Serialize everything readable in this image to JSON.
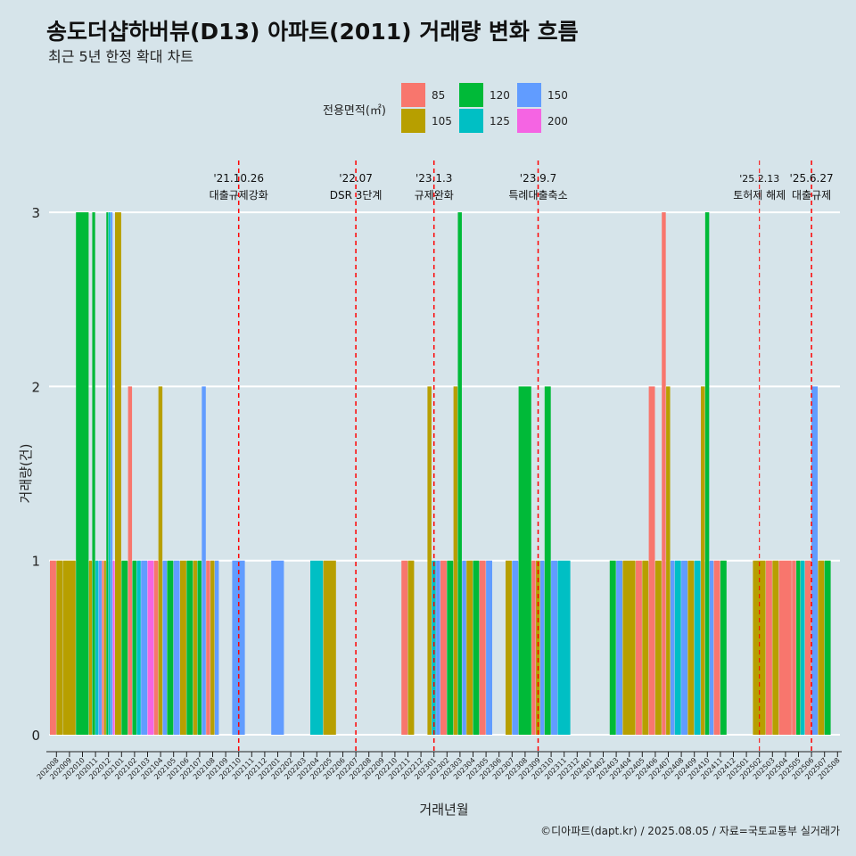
{
  "chart_data": {
    "type": "bar",
    "title": "송도더샵하버뷰(D13) 아파트(2011) 거래량 변화 흐름",
    "subtitle": "최근 5년 한정 확대 차트",
    "xlabel": "거래년월",
    "ylabel": "거래량(건)",
    "ylim": [
      0,
      3
    ],
    "yticks": [
      0,
      1,
      2,
      3
    ],
    "grid": true,
    "legend": {
      "title": "전용면적(㎡)",
      "position": "top",
      "items": [
        {
          "name": "85",
          "color": "#f8766d"
        },
        {
          "name": "105",
          "color": "#b79f00"
        },
        {
          "name": "120",
          "color": "#00ba38"
        },
        {
          "name": "125",
          "color": "#00bfc4"
        },
        {
          "name": "150",
          "color": "#619cff"
        },
        {
          "name": "200",
          "color": "#f564e3"
        }
      ]
    },
    "categories": [
      "202008",
      "202009",
      "202010",
      "202011",
      "202012",
      "202101",
      "202102",
      "202103",
      "202104",
      "202105",
      "202106",
      "202107",
      "202108",
      "202109",
      "202110",
      "202111",
      "202112",
      "202201",
      "202202",
      "202203",
      "202204",
      "202205",
      "202206",
      "202207",
      "202208",
      "202209",
      "202210",
      "202211",
      "202212",
      "202301",
      "202302",
      "202303",
      "202304",
      "202305",
      "202306",
      "202307",
      "202308",
      "202309",
      "202310",
      "202311",
      "202312",
      "202401",
      "202402",
      "202403",
      "202404",
      "202405",
      "202406",
      "202407",
      "202408",
      "202409",
      "202410",
      "202411",
      "202412",
      "202501",
      "202502",
      "202503",
      "202504",
      "202505",
      "202506",
      "202507",
      "202508"
    ],
    "bars": [
      {
        "month": "202008",
        "groups": [
          {
            "area": "85",
            "value": 1
          },
          {
            "area": "105",
            "value": 1
          }
        ]
      },
      {
        "month": "202009",
        "groups": [
          {
            "area": "105",
            "value": 1
          }
        ]
      },
      {
        "month": "202010",
        "groups": [
          {
            "area": "120",
            "value": 3
          }
        ]
      },
      {
        "month": "202011",
        "groups": [
          {
            "area": "105",
            "value": 1
          },
          {
            "area": "120",
            "value": 3
          },
          {
            "area": "125",
            "value": 1
          },
          {
            "area": "150",
            "value": 1
          }
        ]
      },
      {
        "month": "202012",
        "groups": [
          {
            "area": "85",
            "value": 1
          },
          {
            "area": "105",
            "value": 1
          },
          {
            "area": "120",
            "value": 3
          },
          {
            "area": "125",
            "value": 3
          },
          {
            "area": "150",
            "value": 3
          },
          {
            "area": "200",
            "value": 1
          }
        ]
      },
      {
        "month": "202101",
        "groups": [
          {
            "area": "105",
            "value": 3
          },
          {
            "area": "120",
            "value": 1
          }
        ]
      },
      {
        "month": "202102",
        "groups": [
          {
            "area": "85",
            "value": 2
          },
          {
            "area": "120",
            "value": 1
          },
          {
            "area": "125",
            "value": 1
          }
        ]
      },
      {
        "month": "202103",
        "groups": [
          {
            "area": "150",
            "value": 1
          },
          {
            "area": "200",
            "value": 1
          }
        ]
      },
      {
        "month": "202104",
        "groups": [
          {
            "area": "85",
            "value": 1
          },
          {
            "area": "105",
            "value": 2
          },
          {
            "area": "150",
            "value": 1
          }
        ]
      },
      {
        "month": "202105",
        "groups": [
          {
            "area": "120",
            "value": 1
          },
          {
            "area": "150",
            "value": 1
          }
        ]
      },
      {
        "month": "202106",
        "groups": [
          {
            "area": "105",
            "value": 1
          },
          {
            "area": "120",
            "value": 1
          }
        ]
      },
      {
        "month": "202107",
        "groups": [
          {
            "area": "105",
            "value": 1
          },
          {
            "area": "120",
            "value": 1
          },
          {
            "area": "150",
            "value": 2
          }
        ]
      },
      {
        "month": "202108",
        "groups": [
          {
            "area": "85",
            "value": 1
          },
          {
            "area": "105",
            "value": 1
          },
          {
            "area": "150",
            "value": 1
          }
        ]
      },
      {
        "month": "202110",
        "groups": [
          {
            "area": "150",
            "value": 1
          }
        ]
      },
      {
        "month": "202201",
        "groups": [
          {
            "area": "150",
            "value": 1
          }
        ]
      },
      {
        "month": "202204",
        "groups": [
          {
            "area": "125",
            "value": 1
          }
        ]
      },
      {
        "month": "202205",
        "groups": [
          {
            "area": "105",
            "value": 1
          }
        ]
      },
      {
        "month": "202211",
        "groups": [
          {
            "area": "85",
            "value": 1
          },
          {
            "area": "105",
            "value": 1
          }
        ]
      },
      {
        "month": "202301",
        "groups": [
          {
            "area": "105",
            "value": 2
          },
          {
            "area": "150",
            "value": 1
          },
          {
            "area": "125",
            "value": 1
          }
        ]
      },
      {
        "month": "202302",
        "groups": [
          {
            "area": "85",
            "value": 1
          },
          {
            "area": "120",
            "value": 1
          }
        ]
      },
      {
        "month": "202303",
        "groups": [
          {
            "area": "105",
            "value": 2
          },
          {
            "area": "120",
            "value": 3
          },
          {
            "area": "150",
            "value": 1
          }
        ]
      },
      {
        "month": "202304",
        "groups": [
          {
            "area": "105",
            "value": 1
          },
          {
            "area": "120",
            "value": 1
          }
        ]
      },
      {
        "month": "202305",
        "groups": [
          {
            "area": "85",
            "value": 1
          },
          {
            "area": "150",
            "value": 1
          }
        ]
      },
      {
        "month": "202307",
        "groups": [
          {
            "area": "105",
            "value": 1
          },
          {
            "area": "150",
            "value": 1
          }
        ]
      },
      {
        "month": "202308",
        "groups": [
          {
            "area": "120",
            "value": 2
          }
        ]
      },
      {
        "month": "202309",
        "groups": [
          {
            "area": "85",
            "value": 1
          },
          {
            "area": "105",
            "value": 1
          },
          {
            "area": "150",
            "value": 1
          }
        ]
      },
      {
        "month": "202310",
        "groups": [
          {
            "area": "150",
            "value": 1
          },
          {
            "area": "120",
            "value": 2
          }
        ]
      },
      {
        "month": "202311",
        "groups": [
          {
            "area": "125",
            "value": 1
          }
        ]
      },
      {
        "month": "202403",
        "groups": [
          {
            "area": "120",
            "value": 1
          },
          {
            "area": "150",
            "value": 1
          }
        ]
      },
      {
        "month": "202404",
        "groups": [
          {
            "area": "105",
            "value": 1
          }
        ]
      },
      {
        "month": "202405",
        "groups": [
          {
            "area": "85",
            "value": 1
          },
          {
            "area": "105",
            "value": 1
          }
        ]
      },
      {
        "month": "202406",
        "groups": [
          {
            "area": "85",
            "value": 2
          },
          {
            "area": "105",
            "value": 1
          }
        ]
      },
      {
        "month": "202407",
        "groups": [
          {
            "area": "85",
            "value": 3
          },
          {
            "area": "105",
            "value": 2
          },
          {
            "area": "150",
            "value": 1
          }
        ]
      },
      {
        "month": "202408",
        "groups": [
          {
            "area": "125",
            "value": 1
          },
          {
            "area": "150",
            "value": 1
          }
        ]
      },
      {
        "month": "202409",
        "groups": [
          {
            "area": "105",
            "value": 1
          },
          {
            "area": "125",
            "value": 1
          }
        ]
      },
      {
        "month": "202410",
        "groups": [
          {
            "area": "105",
            "value": 2
          },
          {
            "area": "120",
            "value": 3
          },
          {
            "area": "150",
            "value": 1
          }
        ]
      },
      {
        "month": "202411",
        "groups": [
          {
            "area": "85",
            "value": 1
          },
          {
            "area": "120",
            "value": 1
          }
        ]
      },
      {
        "month": "202502",
        "groups": [
          {
            "area": "105",
            "value": 1
          }
        ]
      },
      {
        "month": "202503",
        "groups": [
          {
            "area": "85",
            "value": 1
          },
          {
            "area": "105",
            "value": 1
          }
        ]
      },
      {
        "month": "202504",
        "groups": [
          {
            "area": "85",
            "value": 1
          }
        ]
      },
      {
        "month": "202505",
        "groups": [
          {
            "area": "85",
            "value": 1
          },
          {
            "area": "125",
            "value": 1
          },
          {
            "area": "120",
            "value": 1
          }
        ]
      },
      {
        "month": "202506",
        "groups": [
          {
            "area": "85",
            "value": 1
          },
          {
            "area": "150",
            "value": 2
          }
        ]
      },
      {
        "month": "202507",
        "groups": [
          {
            "area": "105",
            "value": 1
          },
          {
            "area": "120",
            "value": 1
          }
        ]
      }
    ],
    "annotations": [
      {
        "month": "202110",
        "date": "'21.10.26",
        "label": "대출규제강화"
      },
      {
        "month": "202207",
        "date": "'22.07",
        "label": "DSR 3단계"
      },
      {
        "month": "202301",
        "date": "'23.1.3",
        "label": "규제완화"
      },
      {
        "month": "202309",
        "date": "'23.9.7",
        "label": "특례대출축소"
      },
      {
        "month": "202502",
        "date": "'25.2.13",
        "label": "토허제 해제"
      },
      {
        "month": "202506",
        "date": "'25.6.27",
        "label": "대출규제"
      }
    ],
    "caption": "©디아파트(dapt.kr) / 2025.08.05 / 자료=국토교통부 실거래가"
  }
}
